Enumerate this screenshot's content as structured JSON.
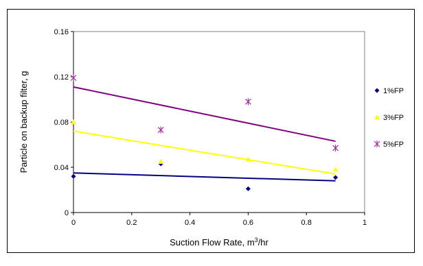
{
  "chart_data": {
    "type": "scatter",
    "title": "",
    "xlabel": "Suction Flow Rate, m",
    "xlabel_sup": "3",
    "xlabel_suffix": "/hr",
    "ylabel": "Particle on backup filter, g",
    "xlim": [
      0,
      1
    ],
    "ylim": [
      0,
      0.16
    ],
    "x_ticks": [
      0,
      0.2,
      0.4,
      0.6,
      0.8,
      1
    ],
    "x_tick_labels": [
      "0",
      "0.2",
      "0.4",
      "0.6",
      "0.8",
      "1"
    ],
    "y_ticks": [
      0,
      0.04,
      0.08,
      0.12,
      0.16
    ],
    "y_tick_labels": [
      "0",
      "0.04",
      "0.08",
      "0.12",
      "0.16"
    ],
    "grid": false,
    "legend_position": "right",
    "series": [
      {
        "name": "1%FP",
        "marker": "diamond",
        "marker_color": "#000080",
        "line_color": "#000080",
        "points": [
          {
            "x": 0,
            "y": 0.032
          },
          {
            "x": 0.3,
            "y": 0.043
          },
          {
            "x": 0.6,
            "y": 0.021
          },
          {
            "x": 0.9,
            "y": 0.031
          }
        ],
        "trendline": [
          {
            "x": 0,
            "y": 0.035
          },
          {
            "x": 0.9,
            "y": 0.028
          }
        ]
      },
      {
        "name": "3%FP",
        "marker": "triangle",
        "marker_color": "#FFFF00",
        "line_color": "#FFFF00",
        "points": [
          {
            "x": 0,
            "y": 0.08
          },
          {
            "x": 0.3,
            "y": 0.045
          },
          {
            "x": 0.6,
            "y": 0.047
          },
          {
            "x": 0.9,
            "y": 0.038
          }
        ],
        "trendline": [
          {
            "x": 0,
            "y": 0.072
          },
          {
            "x": 0.9,
            "y": 0.034
          }
        ]
      },
      {
        "name": "5%FP",
        "marker": "star",
        "marker_color": "#A020A0",
        "line_color": "#800080",
        "points": [
          {
            "x": 0,
            "y": 0.119
          },
          {
            "x": 0.3,
            "y": 0.073
          },
          {
            "x": 0.6,
            "y": 0.098
          },
          {
            "x": 0.9,
            "y": 0.057
          }
        ],
        "trendline": [
          {
            "x": 0,
            "y": 0.111
          },
          {
            "x": 0.9,
            "y": 0.063
          }
        ]
      }
    ]
  }
}
